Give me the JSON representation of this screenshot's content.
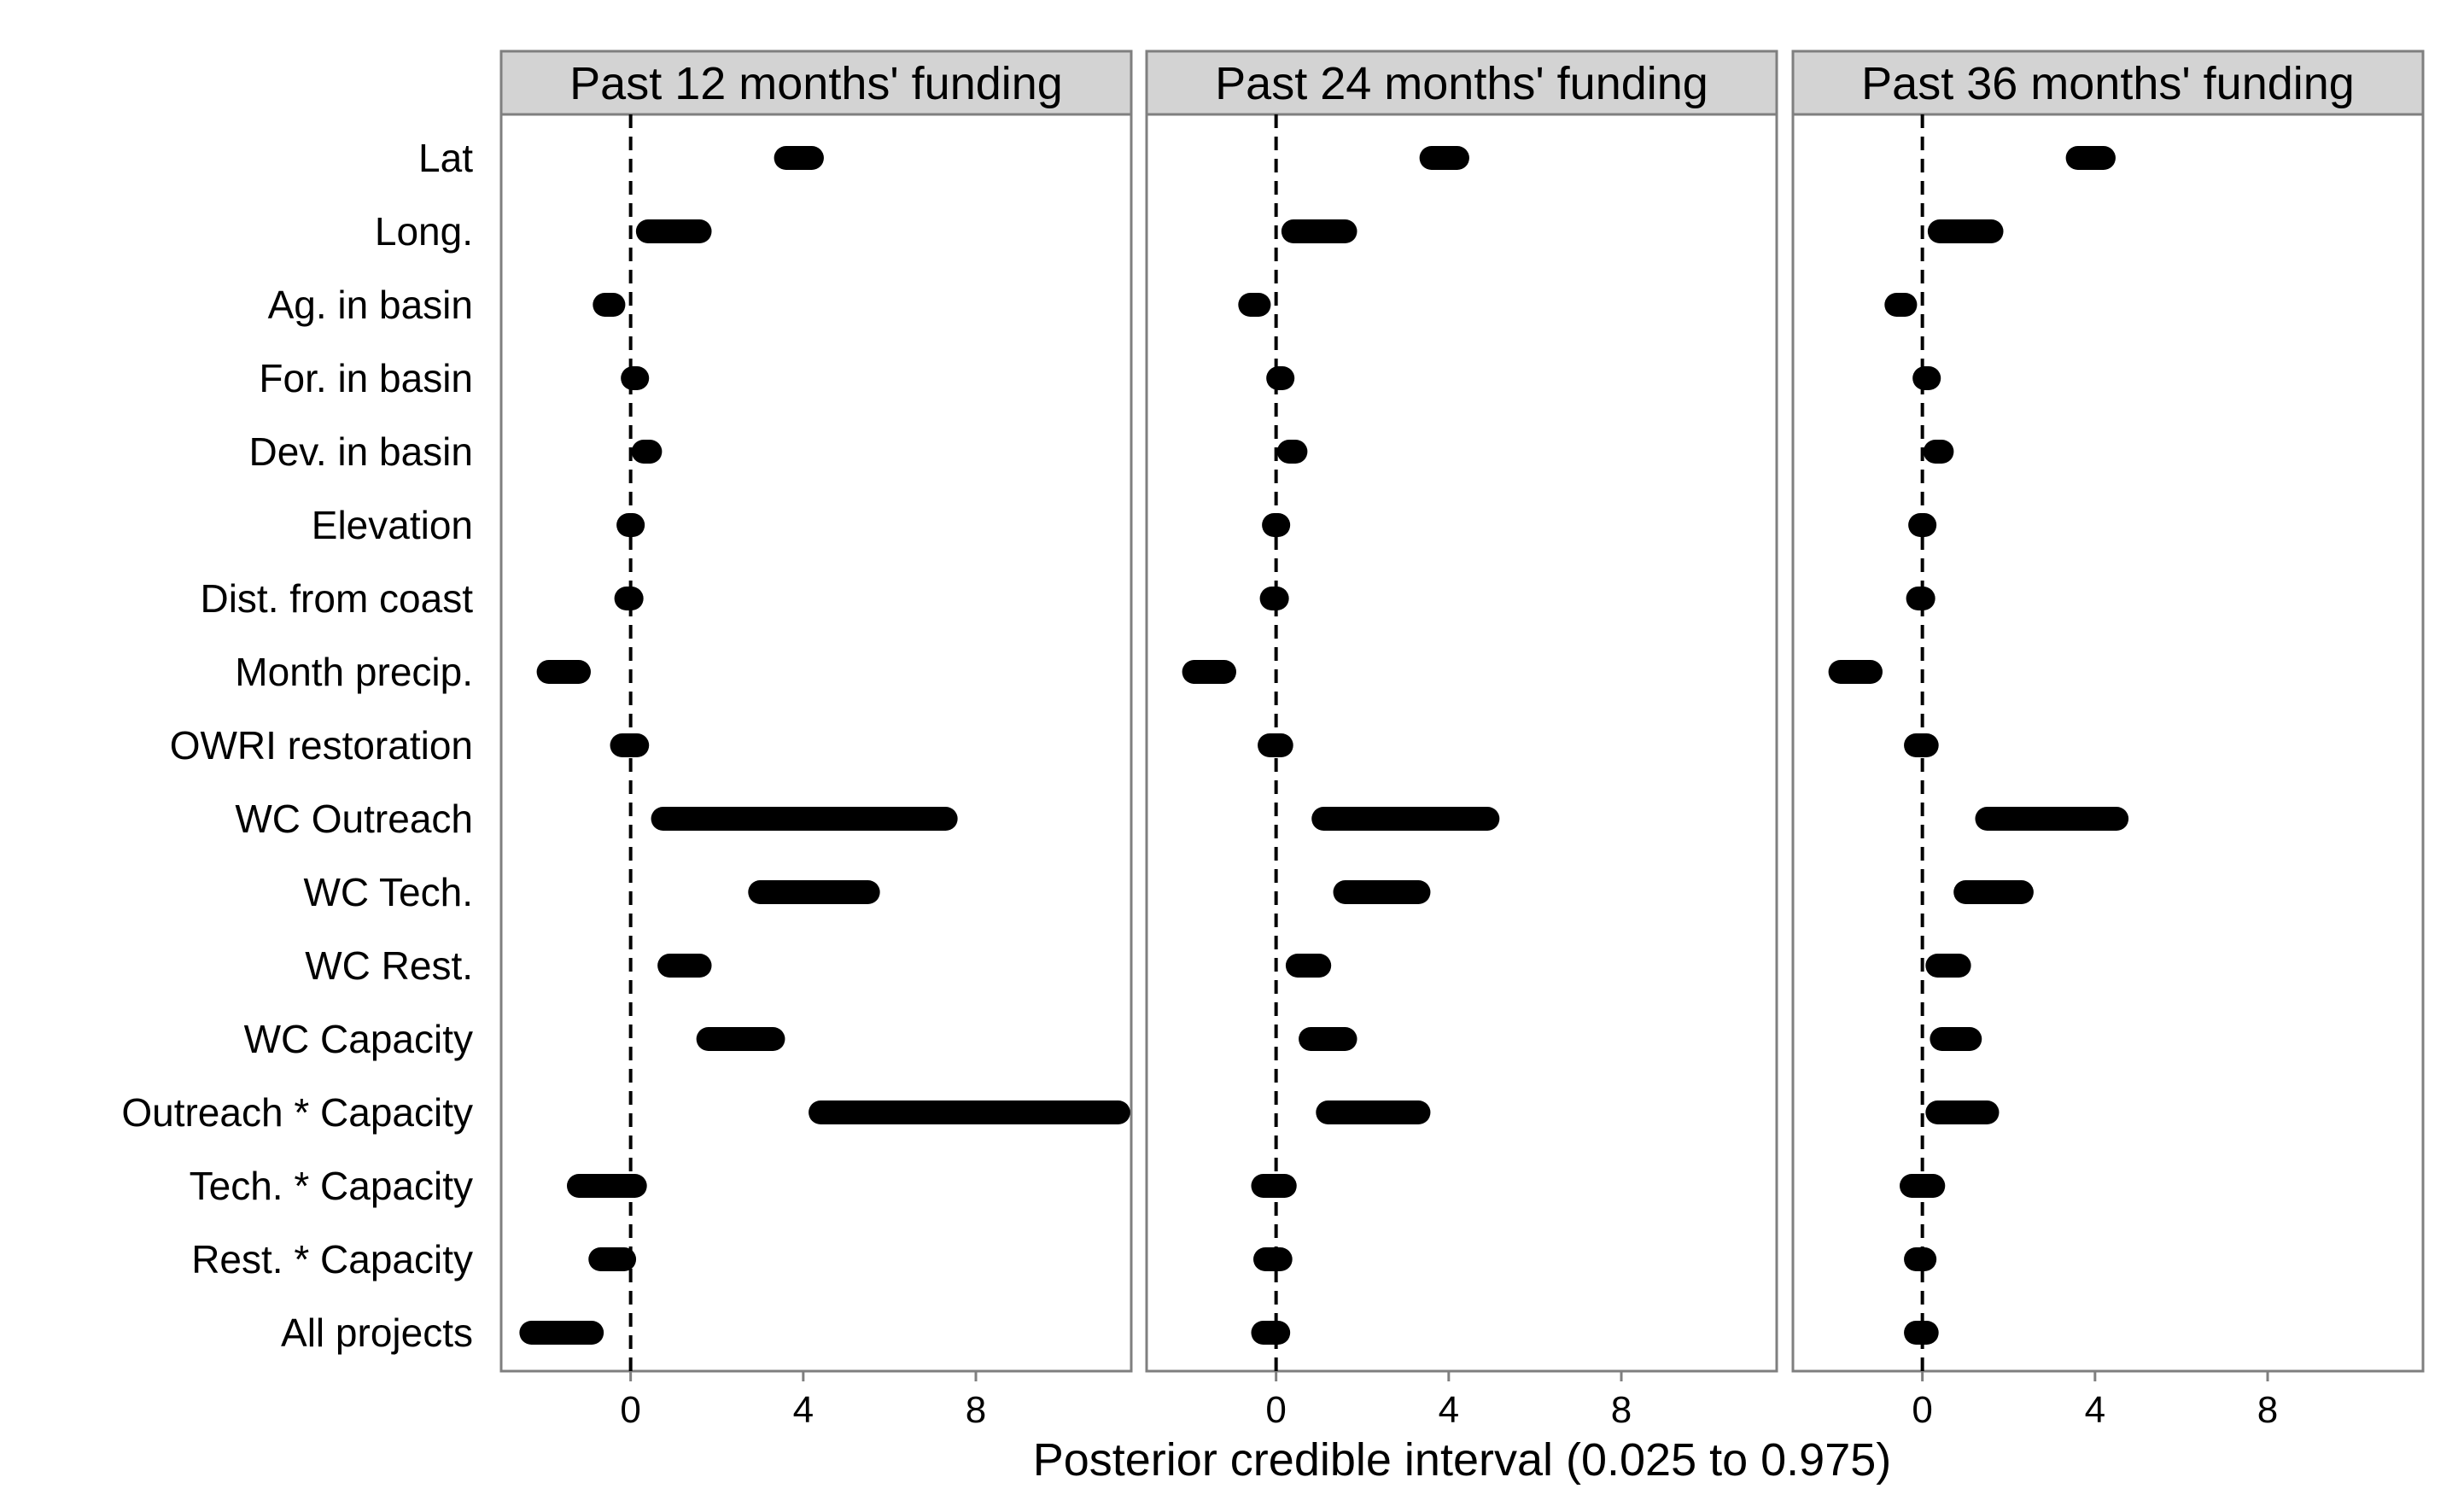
{
  "chart_data": {
    "type": "interval",
    "xlabel": "Posterior credible interval (0.025 to 0.975)",
    "xlim": [
      -3,
      11.6
    ],
    "xticks": [
      0,
      4,
      8
    ],
    "reference_line": 0,
    "grid": false,
    "variables": [
      "Lat",
      "Long.",
      "Ag. in basin",
      "For. in basin",
      "Dev. in basin",
      "Elevation",
      "Dist. from coast",
      "Month precip.",
      "OWRI restoration",
      "WC Outreach",
      "WC Tech.",
      "WC Rest.",
      "WC Capacity",
      "Outreach * Capacity",
      "Tech. * Capacity",
      "Rest. * Capacity",
      "All projects"
    ],
    "panels": [
      {
        "title": "Past 12 months' funding",
        "intervals": [
          [
            3.6,
            4.2
          ],
          [
            0.4,
            1.6
          ],
          [
            -0.6,
            -0.4
          ],
          [
            0.05,
            0.15
          ],
          [
            0.3,
            0.45
          ],
          [
            -0.05,
            0.05
          ],
          [
            -0.1,
            0.02
          ],
          [
            -1.9,
            -1.2
          ],
          [
            -0.2,
            0.15
          ],
          [
            0.75,
            7.3
          ],
          [
            3.0,
            5.5
          ],
          [
            0.9,
            1.6
          ],
          [
            1.8,
            3.3
          ],
          [
            4.4,
            11.3
          ],
          [
            -1.2,
            0.1
          ],
          [
            -0.7,
            -0.15
          ],
          [
            -2.3,
            -0.9
          ]
        ]
      },
      {
        "title": "Past 24 months' funding",
        "intervals": [
          [
            3.6,
            4.2
          ],
          [
            0.4,
            1.6
          ],
          [
            -0.6,
            -0.4
          ],
          [
            0.05,
            0.15
          ],
          [
            0.3,
            0.45
          ],
          [
            -0.05,
            0.05
          ],
          [
            -0.1,
            0.02
          ],
          [
            -1.9,
            -1.2
          ],
          [
            -0.15,
            0.12
          ],
          [
            1.1,
            4.9
          ],
          [
            1.6,
            3.3
          ],
          [
            0.5,
            1.0
          ],
          [
            0.8,
            1.6
          ],
          [
            1.2,
            3.3
          ],
          [
            -0.3,
            0.2
          ],
          [
            -0.25,
            0.1
          ],
          [
            -0.3,
            0.05
          ]
        ]
      },
      {
        "title": "Past 36 months' funding",
        "intervals": [
          [
            3.6,
            4.2
          ],
          [
            0.4,
            1.6
          ],
          [
            -0.6,
            -0.4
          ],
          [
            0.05,
            0.15
          ],
          [
            0.3,
            0.45
          ],
          [
            -0.05,
            0.05
          ],
          [
            -0.1,
            0.02
          ],
          [
            -1.9,
            -1.2
          ],
          [
            -0.15,
            0.1
          ],
          [
            1.5,
            4.5
          ],
          [
            1.0,
            2.3
          ],
          [
            0.35,
            0.85
          ],
          [
            0.45,
            1.1
          ],
          [
            0.35,
            1.5
          ],
          [
            -0.25,
            0.25
          ],
          [
            -0.15,
            0.05
          ],
          [
            -0.15,
            0.1
          ]
        ]
      }
    ]
  }
}
